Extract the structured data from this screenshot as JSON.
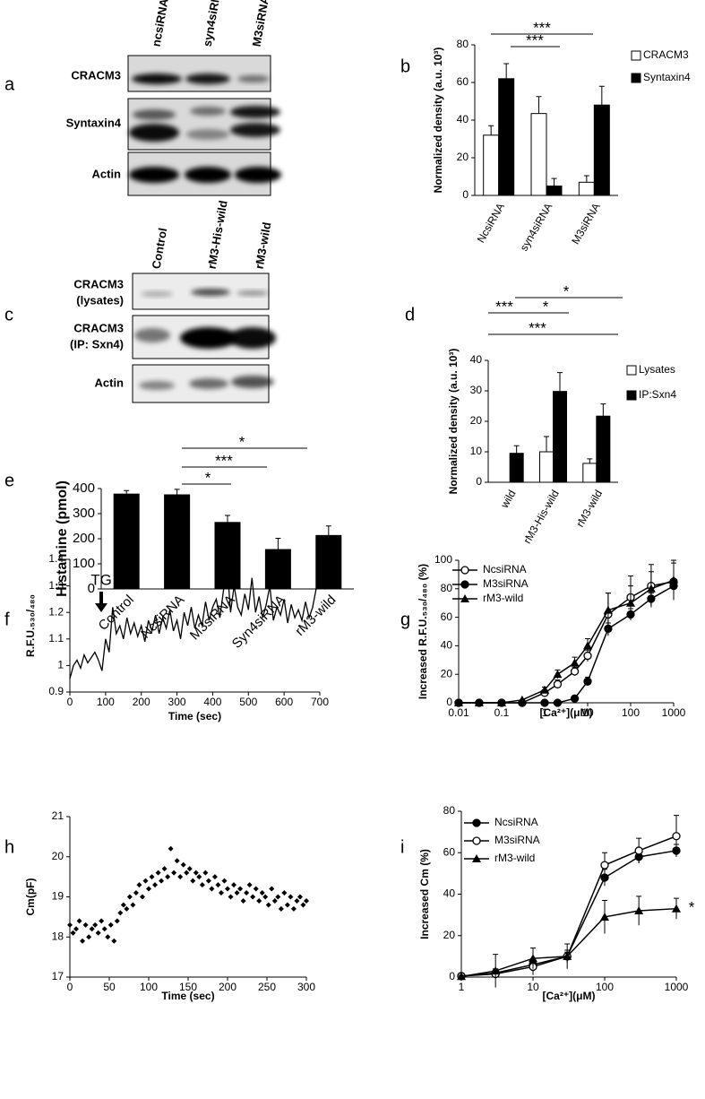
{
  "blots": [
    {
      "panel": "a",
      "lanes": [
        "ncsiRNA",
        "syn4siRNA",
        "M3siRNA"
      ],
      "rows": [
        [
          "CRACM3"
        ],
        [
          "Syntaxin4"
        ],
        [
          "Actin"
        ]
      ]
    },
    {
      "panel": "c",
      "lanes": [
        "Control",
        "rM3-His-wild",
        "rM3-wild"
      ],
      "rows": [
        [
          "CRACM3",
          "(lysates)"
        ],
        [
          "CRACM3",
          "(IP: Sxn4)"
        ],
        [
          "Actin"
        ]
      ]
    }
  ],
  "chart_data": [
    {
      "panel": "b",
      "type": "bar",
      "y_label": "Normalized density (a.u. 10³)",
      "categories": [
        "NcsiRNA",
        "syn4siRNA",
        "M3siRNA"
      ],
      "series": [
        {
          "name": "CRACM3",
          "color": "#ffffff",
          "values": [
            32,
            43.5,
            7
          ],
          "errors": [
            5,
            9,
            3.5
          ]
        },
        {
          "name": "Syntaxin4",
          "color": "#000000",
          "values": [
            62,
            5,
            48
          ],
          "errors": [
            8,
            4,
            10
          ]
        }
      ],
      "ylim": [
        0,
        80
      ],
      "yticks": [
        0,
        20,
        40,
        60,
        80
      ],
      "annotations": [
        "***",
        "***"
      ],
      "legend": "right"
    },
    {
      "panel": "d",
      "type": "bar",
      "y_label": "Normalized density (a.u. 10³)",
      "categories": [
        "wild",
        "rM3-His-wild",
        "rM3-wild"
      ],
      "series": [
        {
          "name": "Lysates",
          "color": "#ffffff",
          "values": [
            null,
            10,
            6.2
          ],
          "errors": [
            null,
            5,
            1.5
          ]
        },
        {
          "name": "IP:Sxn4",
          "color": "#000000",
          "values": [
            9.5,
            29.8,
            21.7
          ],
          "errors": [
            2.5,
            6.2,
            4
          ]
        }
      ],
      "ylim": [
        0,
        40
      ],
      "yticks": [
        0,
        10,
        20,
        30,
        40
      ],
      "annotations": [
        "*",
        "***",
        "*",
        "***"
      ],
      "legend": "right"
    },
    {
      "panel": "e",
      "type": "bar",
      "y_label": "Histamine (pmol)",
      "categories": [
        "Control",
        "NcsiRNA",
        "M3siRNA",
        "Syn4siRNA",
        "rM3-wild"
      ],
      "values": [
        378,
        375,
        265,
        157,
        213
      ],
      "errors": [
        14,
        22,
        28,
        45,
        38
      ],
      "color": "#000000",
      "ylim": [
        0,
        400
      ],
      "yticks": [
        0,
        100,
        200,
        300,
        400
      ],
      "annotations": [
        "*",
        "***",
        "*"
      ]
    },
    {
      "panel": "f",
      "type": "line",
      "x_label": "Time (sec)",
      "y_label": "R.F.U.₅₃₀/₄₈₀",
      "x": [
        0,
        10,
        20,
        30,
        40,
        50,
        60,
        70,
        80,
        90,
        100,
        110,
        120,
        130,
        140,
        150,
        160,
        170,
        180,
        190,
        200,
        210,
        220,
        230,
        240,
        250,
        260,
        270,
        280,
        290,
        300,
        310,
        320,
        330,
        340,
        350,
        360,
        370,
        380,
        390,
        400,
        410,
        420,
        430,
        440,
        450,
        460,
        470,
        480,
        490,
        500,
        510,
        520,
        530,
        540,
        550,
        560,
        570,
        580,
        590,
        600,
        610,
        620,
        630,
        640,
        650,
        660,
        670,
        680,
        690
      ],
      "values": [
        0.95,
        1.0,
        1.02,
        0.99,
        1.04,
        1.01,
        1.03,
        1.05,
        1.02,
        0.98,
        1.1,
        1.05,
        1.22,
        1.12,
        1.15,
        1.1,
        1.18,
        1.12,
        1.16,
        1.11,
        1.15,
        1.09,
        1.17,
        1.13,
        1.19,
        1.12,
        1.18,
        1.14,
        1.21,
        1.13,
        1.17,
        1.1,
        1.2,
        1.15,
        1.22,
        1.14,
        1.19,
        1.15,
        1.24,
        1.17,
        1.22,
        1.25,
        1.18,
        1.28,
        1.39,
        1.2,
        1.3,
        1.22,
        1.19,
        1.27,
        1.21,
        1.33,
        1.2,
        1.26,
        1.18,
        1.23,
        1.3,
        1.17,
        1.22,
        1.19,
        1.25,
        1.16,
        1.23,
        1.18,
        1.21,
        1.17,
        1.24,
        1.18,
        1.22,
        1.29
      ],
      "color": "#000000",
      "xlim": [
        0,
        700
      ],
      "xticks": [
        0,
        100,
        200,
        300,
        400,
        500,
        600,
        700
      ],
      "ylim": [
        0.9,
        1.4
      ],
      "yticks": [
        0.9,
        1,
        1.1,
        1.2,
        1.3,
        1.4
      ],
      "annotations": [
        "TG"
      ]
    },
    {
      "panel": "g",
      "type": "line",
      "x_scale": "log",
      "x_label": "[Ca²⁺](μM)",
      "y_label": "Increased R.F.U.₅₃₀/₄₈₀ (%)",
      "x": [
        0.01,
        0.03,
        0.1,
        0.3,
        1,
        2,
        5,
        10,
        30,
        100,
        300,
        1000
      ],
      "series": [
        {
          "name": "NcsiRNA",
          "color": "#000000",
          "marker": "circle-open",
          "values": [
            0,
            0,
            0,
            0,
            7,
            13,
            22,
            33,
            62,
            74,
            82,
            85
          ],
          "errors": [
            0,
            0,
            0,
            0,
            2,
            3,
            3,
            4,
            15,
            15,
            15,
            13
          ]
        },
        {
          "name": "M3siRNA",
          "color": "#000000",
          "marker": "circle",
          "values": [
            0,
            0,
            0,
            0,
            0,
            0,
            3,
            15,
            52,
            62,
            73,
            82
          ],
          "errors": [
            0,
            0,
            0,
            0,
            0,
            0,
            2,
            3,
            4,
            4,
            4,
            4
          ]
        },
        {
          "name": "rM3-wild",
          "color": "#000000",
          "marker": "triangle",
          "values": [
            0,
            0,
            0,
            2,
            9,
            20,
            28,
            40,
            65,
            70,
            80,
            86
          ],
          "errors": [
            0,
            0,
            0,
            0,
            2,
            3,
            4,
            5,
            12,
            12,
            12,
            14
          ]
        }
      ],
      "xlim": [
        0.01,
        1000
      ],
      "xticks": [
        0.01,
        0.1,
        1,
        10,
        100,
        1000
      ],
      "ylim": [
        0,
        100
      ],
      "yticks": [
        0,
        20,
        40,
        60,
        80,
        100
      ],
      "legend": "upper left"
    },
    {
      "panel": "h",
      "type": "scatter",
      "x_label": "Time (sec)",
      "y_label": "Cm(pF)",
      "x": [
        0,
        4,
        8,
        12,
        16,
        20,
        24,
        28,
        32,
        36,
        40,
        44,
        48,
        52,
        56,
        60,
        64,
        68,
        72,
        76,
        80,
        84,
        88,
        92,
        96,
        100,
        104,
        108,
        112,
        116,
        120,
        124,
        128,
        132,
        136,
        140,
        144,
        148,
        152,
        156,
        160,
        164,
        168,
        172,
        176,
        180,
        184,
        188,
        192,
        196,
        200,
        204,
        208,
        212,
        216,
        220,
        224,
        228,
        232,
        236,
        240,
        244,
        248,
        252,
        256,
        260,
        264,
        268,
        272,
        276,
        280,
        284,
        288,
        292,
        296,
        300
      ],
      "values": [
        18.3,
        18.1,
        18.2,
        18.4,
        17.9,
        18.3,
        18.0,
        18.2,
        18.3,
        18.1,
        18.4,
        18.2,
        18.0,
        18.3,
        17.9,
        18.4,
        18.6,
        18.8,
        18.7,
        19.0,
        18.8,
        19.1,
        19.3,
        19.0,
        19.4,
        19.2,
        19.5,
        19.3,
        19.6,
        19.4,
        19.7,
        19.5,
        20.2,
        19.6,
        19.9,
        19.5,
        19.8,
        19.6,
        19.7,
        19.4,
        19.6,
        19.5,
        19.3,
        19.6,
        19.4,
        19.2,
        19.5,
        19.3,
        19.1,
        19.4,
        19.2,
        19.0,
        19.3,
        19.1,
        19.2,
        18.9,
        19.1,
        19.3,
        19.0,
        19.2,
        18.9,
        19.1,
        19.0,
        18.8,
        19.2,
        18.9,
        19.0,
        18.7,
        19.1,
        18.8,
        19.0,
        18.7,
        18.9,
        19.0,
        18.8,
        18.9
      ],
      "color": "#000000",
      "xlim": [
        0,
        300
      ],
      "xticks": [
        0,
        50,
        100,
        150,
        200,
        250,
        300
      ],
      "ylim": [
        17,
        21
      ],
      "yticks": [
        17,
        18,
        19,
        20,
        21
      ]
    },
    {
      "panel": "i",
      "type": "line",
      "x_scale": "log",
      "x_label": "[Ca²⁺](μM)",
      "y_label": "Increased Cm (%)",
      "x": [
        1,
        3,
        10,
        30,
        100,
        300,
        1000
      ],
      "series": [
        {
          "name": "NcsiRNA",
          "color": "#000000",
          "marker": "circle",
          "values": [
            0.5,
            2,
            6,
            10,
            48,
            58,
            61
          ],
          "errors": [
            0.5,
            2,
            2,
            2,
            4,
            3,
            3
          ]
        },
        {
          "name": "M3siRNA",
          "color": "#000000",
          "marker": "circle-open",
          "values": [
            0.5,
            1.5,
            5,
            10,
            54,
            61,
            68
          ],
          "errors": [
            0.5,
            2,
            4,
            3,
            6,
            6,
            10
          ]
        },
        {
          "name": "rM3-wild",
          "color": "#000000",
          "marker": "triangle",
          "values": [
            0.3,
            3,
            9,
            10,
            29,
            32,
            33
          ],
          "errors": [
            0.5,
            8,
            5,
            6,
            8,
            7,
            5
          ]
        }
      ],
      "xlim": [
        1,
        1000
      ],
      "xticks": [
        1,
        10,
        100,
        1000
      ],
      "ylim": [
        0,
        80
      ],
      "yticks": [
        0,
        20,
        40,
        60,
        80
      ],
      "annotations": [
        "*"
      ],
      "legend": "upper left"
    }
  ]
}
